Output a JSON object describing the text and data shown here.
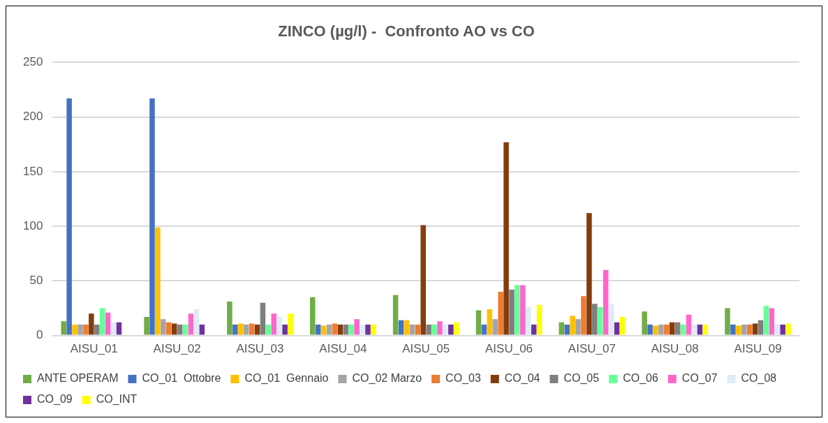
{
  "chart_data": {
    "type": "bar",
    "title": "ZINCO (µg/l) -  Confronto AO vs CO",
    "categories": [
      "AISU_01",
      "AISU_02",
      "AISU_03",
      "AISU_04",
      "AISU_05",
      "AISU_06",
      "AISU_07",
      "AISU_08",
      "AISU_09"
    ],
    "series": [
      {
        "name": "ANTE OPERAM",
        "color": "#70ad47",
        "values": [
          13,
          17,
          31,
          35,
          37,
          23,
          12,
          22,
          25
        ]
      },
      {
        "name": "CO_01  Ottobre",
        "color": "#4472c4",
        "values": [
          217,
          217,
          10,
          10,
          14,
          10,
          10,
          10,
          10
        ]
      },
      {
        "name": "CO_01  Gennaio",
        "color": "#ffc000",
        "values": [
          10,
          99,
          11,
          9,
          14,
          24,
          18,
          9,
          9
        ]
      },
      {
        "name": "CO_02 Marzo",
        "color": "#a5a5a5",
        "values": [
          10,
          15,
          10,
          10,
          10,
          15,
          15,
          10,
          10
        ]
      },
      {
        "name": "CO_03",
        "color": "#ed7d31",
        "values": [
          10,
          12,
          11,
          11,
          10,
          40,
          36,
          10,
          10
        ]
      },
      {
        "name": "CO_04",
        "color": "#843c0c",
        "values": [
          20,
          11,
          10,
          10,
          101,
          177,
          112,
          12,
          11
        ]
      },
      {
        "name": "CO_05",
        "color": "#7f7f7f",
        "values": [
          10,
          10,
          30,
          10,
          10,
          42,
          29,
          12,
          14
        ]
      },
      {
        "name": "CO_06",
        "color": "#66ff99",
        "values": [
          25,
          10,
          10,
          10,
          10,
          46,
          26,
          10,
          27
        ]
      },
      {
        "name": "CO_07",
        "color": "#ff66cc",
        "values": [
          21,
          20,
          20,
          15,
          13,
          46,
          60,
          19,
          25
        ]
      },
      {
        "name": "CO_08",
        "color": "#deebf7",
        "values": [
          12,
          24,
          17,
          10,
          10,
          26,
          29,
          10,
          10
        ]
      },
      {
        "name": "CO_09",
        "color": "#7030a0",
        "values": [
          12,
          10,
          10,
          10,
          10,
          10,
          12,
          10,
          10
        ]
      },
      {
        "name": "CO_INT",
        "color": "#ffff00",
        "values": [
          null,
          null,
          20,
          10,
          12,
          28,
          17,
          10,
          11
        ]
      }
    ],
    "ylim": [
      0,
      250
    ],
    "yticks": [
      0,
      50,
      100,
      150,
      200,
      250
    ],
    "grid": "y",
    "legend": "bottom"
  }
}
